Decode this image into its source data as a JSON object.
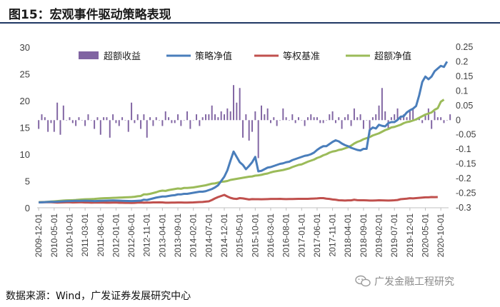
{
  "figure": {
    "title": "图15：宏观事件驱动策略表现",
    "source": "数据来源：Wind，广发证券发展研究中心",
    "watermark": "广发金融工程研究"
  },
  "chart_data": {
    "type": "bar+line",
    "title": "",
    "legend_position": "top",
    "legend": [
      "超额收益",
      "策略净值",
      "等权基准",
      "超额净值"
    ],
    "left_axis": {
      "min": 0,
      "max": 30,
      "ticks": [
        0,
        5,
        10,
        15,
        20,
        25,
        30
      ]
    },
    "right_axis": {
      "min": -0.3,
      "max": 0.25,
      "ticks": [
        -0.3,
        -0.25,
        -0.2,
        -0.15,
        -0.1,
        -0.05,
        0,
        0.05,
        0.1,
        0.15,
        0.2,
        0.25
      ]
    },
    "x_tick_labels": [
      "2009-12-01",
      "2010-05-01",
      "2010-10-01",
      "2011-03-01",
      "2011-08-01",
      "2012-01-01",
      "2012-06-01",
      "2012-11-01",
      "2013-04-01",
      "2013-09-01",
      "2014-02-01",
      "2014-07-01",
      "2014-12-01",
      "2015-05-01",
      "2015-10-01",
      "2016-03-01",
      "2016-08-01",
      "2017-01-01",
      "2017-06-01",
      "2017-11-01",
      "2018-04-01",
      "2018-09-01",
      "2019-02-01",
      "2019-07-01",
      "2019-12-01",
      "2020-05-01",
      "2020-10-01"
    ],
    "colors": {
      "bars": "#8064a2",
      "strategy": "#4a7ebb",
      "benchmark": "#c0504d",
      "excess_nav": "#9bbb59"
    },
    "start_month": "2009-12",
    "excess_return": [
      -0.03,
      0.02,
      0.01,
      -0.04,
      -0.01,
      -0.04,
      0.06,
      -0.05,
      0.05,
      0,
      0.01,
      -0.01,
      -0.02,
      0.01,
      0,
      -0.02,
      0.02,
      0,
      -0.03,
      0.01,
      -0.05,
      0.01,
      0.01,
      -0.06,
      0.02,
      -0.01,
      -0.02,
      0.01,
      0,
      -0.04,
      0.06,
      -0.01,
      0.02,
      -0.03,
      0.02,
      -0.06,
      0.01,
      -0.02,
      0.01,
      0,
      -0.02,
      0.03,
      0.01,
      -0.01,
      -0.01,
      0.02,
      -0.02,
      0,
      0.03,
      -0.03,
      0,
      0.02,
      -0.02,
      0.01,
      0.02,
      0.02,
      0.05,
      0.02,
      0.01,
      0.03,
      0.02,
      0.04,
      0.03,
      0.12,
      0.06,
      0.11,
      -0.06,
      0.02,
      -0.07,
      -0.04,
      0.03,
      -0.13,
      0.05,
      0.02,
      0.04,
      -0.01,
      0.01,
      -0.02,
      0,
      0.04,
      0.01,
      0,
      0.02,
      -0.01,
      0.01,
      0,
      -0.02,
      0.01,
      0.02,
      0.01,
      0.01,
      -0.01,
      -0.01,
      0,
      0.02,
      0.03,
      -0.01,
      0.01,
      -0.03,
      0.01,
      0.02,
      -0.02,
      0.04,
      0.01,
      0.02,
      -0.03,
      0,
      -0.05,
      0.01,
      0.02,
      0.05,
      0.11,
      0.03,
      -0.03,
      0.01,
      0.02,
      0.04,
      0.01,
      0.02,
      0.01,
      0.03,
      0.04,
      0,
      0.01,
      -0.01,
      0.02,
      0.04,
      -0.03,
      0.03,
      0.01,
      0.01,
      -0.01,
      0,
      0.02
    ],
    "strategy_nav": [
      1,
      1.02,
      1.05,
      1.08,
      1.11,
      1.1,
      1.13,
      1.16,
      1.2,
      1.23,
      1.25,
      1.27,
      1.3,
      1.28,
      1.3,
      1.32,
      1.3,
      1.28,
      1.25,
      1.27,
      1.3,
      1.32,
      1.33,
      1.35,
      1.37,
      1.35,
      1.33,
      1.3,
      1.28,
      1.26,
      1.25,
      1.27,
      1.3,
      1.33,
      1.5,
      1.45,
      1.6,
      1.75,
      1.9,
      2,
      2.1,
      2.1,
      2.2,
      2.3,
      2.35,
      2.5,
      2.5,
      2.6,
      2.6,
      2.7,
      2.8,
      2.9,
      3,
      3,
      3.1,
      3.3,
      3.5,
      3.8,
      4.2,
      5,
      5.8,
      7,
      8.8,
      10.5,
      9.5,
      8.5,
      8,
      7.2,
      7.8,
      8.5,
      9.5,
      6.8,
      6.9,
      7.2,
      7.5,
      7.6,
      7.8,
      8,
      8.2,
      8.3,
      8.5,
      8.6,
      8.9,
      9.1,
      9.3,
      9.5,
      9.7,
      9.8,
      10,
      10.3,
      10.8,
      11.2,
      11.5,
      11.5,
      11.9,
      12.3,
      12.6,
      12.4,
      12,
      11.7,
      11.5,
      11.2,
      11,
      10.8,
      10.7,
      11,
      11,
      14.5,
      15,
      14.8,
      15.5,
      15.3,
      15.2,
      15.8,
      16,
      16,
      16.4,
      17,
      17.1,
      17.8,
      18.2,
      18.5,
      19,
      21,
      23.5,
      24.5,
      24,
      24.5,
      25.5,
      26,
      26.5,
      26.3,
      27.3
    ],
    "benchmark_nav": [
      1,
      1.02,
      1.03,
      1.04,
      1.03,
      1,
      0.97,
      0.98,
      1,
      1.02,
      1.01,
      0.99,
      1,
      1.02,
      1.02,
      0.99,
      0.98,
      0.95,
      0.96,
      0.97,
      0.98,
      0.96,
      0.95,
      0.95,
      0.96,
      0.98,
      0.94,
      0.93,
      0.92,
      0.92,
      0.9,
      0.91,
      0.96,
      0.99,
      0.95,
      0.96,
      0.97,
      1,
      1,
      1.02,
      1,
      0.95,
      0.95,
      0.96,
      0.97,
      0.98,
      0.98,
      0.97,
      0.96,
      0.98,
      1,
      1.04,
      1.06,
      1.08,
      1.15,
      1.2,
      1.45,
      1.75,
      2,
      2.2,
      2.4,
      2.1,
      1.85,
      1.7,
      1.65,
      1.8,
      1.75,
      1.65,
      1.55,
      1.62,
      1.6,
      1.6,
      1.58,
      1.6,
      1.62,
      1.65,
      1.65,
      1.65,
      1.66,
      1.64,
      1.62,
      1.63,
      1.64,
      1.65,
      1.66,
      1.67,
      1.67,
      1.66,
      1.7,
      1.72,
      1.75,
      1.8,
      1.8,
      1.7,
      1.65,
      1.55,
      1.5,
      1.4,
      1.38,
      1.35,
      1.38,
      1.38,
      1.5,
      1.42,
      1.4,
      1.4,
      1.38,
      1.35,
      1.35,
      1.37,
      1.4,
      1.38,
      1.36,
      1.35,
      1.37,
      1.4,
      1.45,
      1.6,
      1.65,
      1.7,
      1.78,
      1.75,
      1.8,
      1.85,
      1.9,
      1.95,
      1.95,
      2,
      1.98,
      2
    ],
    "excess_nav": [
      1.05,
      1.06,
      1.08,
      1.12,
      1.16,
      1.2,
      1.25,
      1.3,
      1.35,
      1.38,
      1.4,
      1.42,
      1.45,
      1.5,
      1.55,
      1.58,
      1.6,
      1.62,
      1.65,
      1.7,
      1.75,
      1.78,
      1.8,
      1.82,
      1.85,
      1.87,
      1.9,
      1.92,
      1.95,
      1.97,
      2,
      2.05,
      2.15,
      2.2,
      2.5,
      2.5,
      2.6,
      2.75,
      2.9,
      3.1,
      3.2,
      3.15,
      3.3,
      3.4,
      3.5,
      3.6,
      3.55,
      3.7,
      3.7,
      3.75,
      3.8,
      3.9,
      4,
      4.1,
      4.2,
      4.35,
      4.5,
      4.55,
      4.7,
      4.85,
      4.9,
      5,
      5.2,
      5.3,
      5.4,
      5.5,
      5.6,
      5.7,
      5.8,
      5.85,
      6,
      6.05,
      6.15,
      6.3,
      6.4,
      6.6,
      6.75,
      6.85,
      6.95,
      7.05,
      7.2,
      7.35,
      7.6,
      7.8,
      8,
      8.1,
      8.35,
      8.6,
      8.8,
      9,
      9.3,
      9.5,
      9.8,
      10,
      10.3,
      10.5,
      10.6,
      10.8,
      10.9,
      11.1,
      11.3,
      11.6,
      12,
      12.3,
      12.5,
      12.8,
      13,
      13.2,
      13.5,
      13.7,
      13.9,
      14.2,
      14.5,
      14.7,
      15,
      15.1,
      15.3,
      15.5,
      15.8,
      16,
      16.1,
      16.3,
      16.5,
      16.8,
      17.1,
      17.4,
      17.6,
      17.8,
      18.3,
      18.6,
      19.8,
      20.2
    ]
  }
}
